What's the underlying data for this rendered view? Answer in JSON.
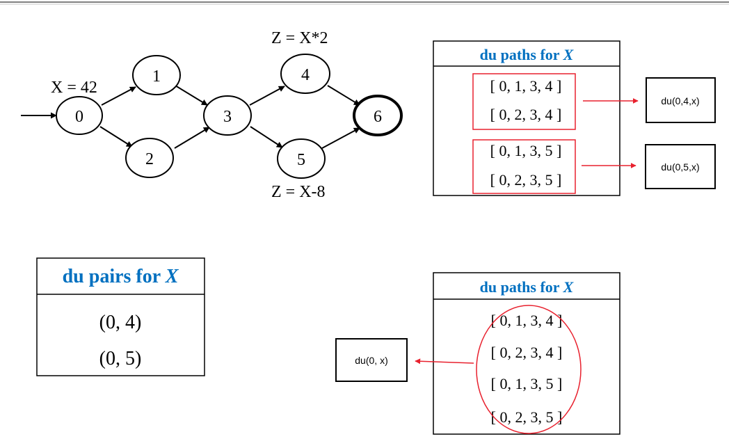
{
  "graph": {
    "nodes": [
      "0",
      "1",
      "2",
      "3",
      "4",
      "5",
      "6"
    ],
    "annotations": {
      "x_def": "X = 42",
      "z_top": "Z = X*2",
      "z_bottom": "Z = X-8"
    }
  },
  "du_paths_top": {
    "title_prefix": "du paths for ",
    "title_var": "X",
    "paths": [
      "[ 0, 1, 3, 4 ]",
      "[ 0, 2, 3, 4 ]",
      "[ 0, 1, 3, 5 ]",
      "[ 0, 2, 3, 5 ]"
    ],
    "groups": [
      "du(0,4,x)",
      "du(0,5,x)"
    ]
  },
  "du_pairs": {
    "title_prefix": "du pairs for ",
    "title_var": "X",
    "pairs": [
      "(0, 4)",
      "(0, 5)"
    ]
  },
  "du_paths_bottom": {
    "title_prefix": "du paths for ",
    "title_var": "X",
    "paths": [
      "[ 0, 1, 3, 4 ]",
      "[ 0, 2, 3, 4 ]",
      "[ 0, 1, 3, 5 ]",
      "[ 0, 2, 3, 5 ]"
    ],
    "group": "du(0, x)"
  },
  "colors": {
    "accent_blue": "#0070c0",
    "highlight_red": "#e8212e"
  }
}
